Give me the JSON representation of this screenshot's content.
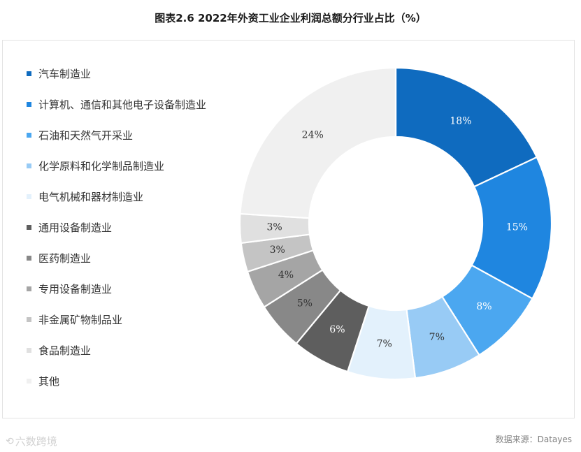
{
  "title": "图表2.6 2022年外资工业企业利润总额分行业占比（%）",
  "source_text": "数据来源：Datayes",
  "watermark_text": "六数跨境",
  "watermark_icon": "logo-icon",
  "chart_data": {
    "type": "pie",
    "donut": true,
    "title": "图表2.6 2022年外资工业企业利润总额分行业占比（%）",
    "legend_position": "left",
    "start_angle": "top",
    "direction": "clockwise",
    "unit": "%",
    "categories": [
      "汽车制造业",
      "计算机、通信和其他电子设备制造业",
      "石油和天然气开采业",
      "化学原料和化学制品制造业",
      "电气机械和器材制造业",
      "通用设备制造业",
      "医药制造业",
      "专用设备制造业",
      "非金属矿物制品业",
      "食品制造业",
      "其他"
    ],
    "values": [
      18,
      15,
      8,
      7,
      7,
      6,
      5,
      4,
      3,
      3,
      24
    ],
    "labels": [
      "18%",
      "15%",
      "8%",
      "7%",
      "7%",
      "6%",
      "5%",
      "4%",
      "3%",
      "3%",
      "24%"
    ],
    "colors": [
      "#0f6bbf",
      "#1f86e0",
      "#4ba7f0",
      "#98cbf5",
      "#e3f1fc",
      "#5e5e5e",
      "#888888",
      "#a5a5a5",
      "#c4c4c4",
      "#e0e0e0",
      "#f0f0f0"
    ],
    "label_colors": [
      "#ffffff",
      "#ffffff",
      "#ffffff",
      "#333333",
      "#333333",
      "#ffffff",
      "#333333",
      "#333333",
      "#333333",
      "#333333",
      "#333333"
    ]
  }
}
